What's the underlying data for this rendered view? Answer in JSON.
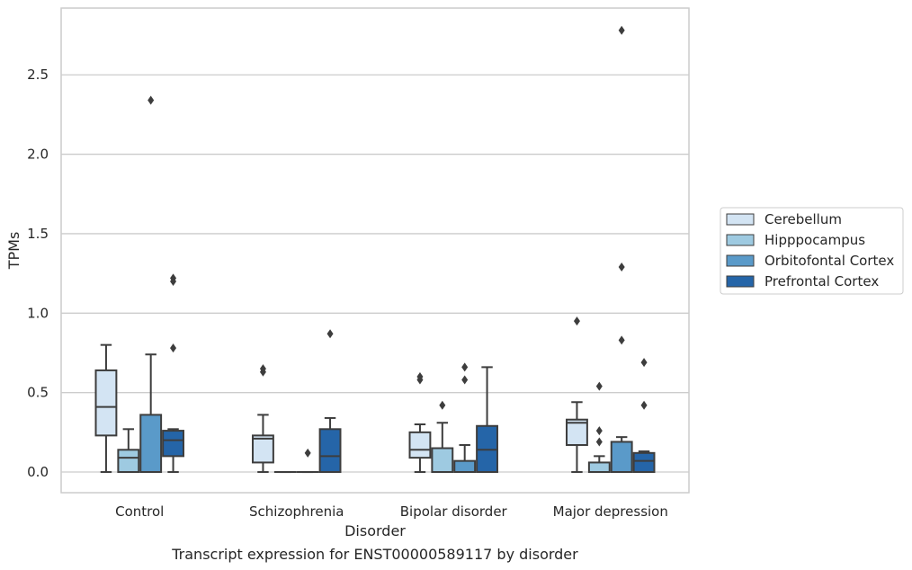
{
  "chart_data": {
    "type": "box",
    "xlabel": "Disorder",
    "ylabel": "TPMs",
    "caption": "Transcript expression for ENST00000589117 by disorder",
    "ylim": [
      -0.13,
      2.92
    ],
    "yticks": [
      "0.0",
      "0.5",
      "1.0",
      "1.5",
      "2.0",
      "2.5"
    ],
    "ytick_values": [
      0.0,
      0.5,
      1.0,
      1.5,
      2.0,
      2.5
    ],
    "grid": "horizontal",
    "legend_position": "right",
    "categories": [
      "Control",
      "Schizophrenia",
      "Bipolar disorder",
      "Major depression"
    ],
    "series": [
      {
        "name": "Cerebellum",
        "color": "#d3e4f3",
        "boxes": [
          {
            "whisker_low": 0.0,
            "q1": 0.23,
            "median": 0.41,
            "q3": 0.64,
            "whisker_high": 0.8,
            "outliers": []
          },
          {
            "whisker_low": 0.0,
            "q1": 0.06,
            "median": 0.21,
            "q3": 0.23,
            "whisker_high": 0.36,
            "outliers": [
              0.63,
              0.65
            ]
          },
          {
            "whisker_low": 0.0,
            "q1": 0.09,
            "median": 0.14,
            "q3": 0.25,
            "whisker_high": 0.3,
            "outliers": [
              0.58,
              0.6
            ]
          },
          {
            "whisker_low": 0.0,
            "q1": 0.17,
            "median": 0.31,
            "q3": 0.33,
            "whisker_high": 0.44,
            "outliers": [
              0.95
            ]
          }
        ]
      },
      {
        "name": "Hipppocampus",
        "color": "#9ecae1",
        "boxes": [
          {
            "whisker_low": 0.0,
            "q1": 0.0,
            "median": 0.09,
            "q3": 0.14,
            "whisker_high": 0.27,
            "outliers": []
          },
          {
            "whisker_low": 0.0,
            "q1": 0.0,
            "median": 0.0,
            "q3": 0.0,
            "whisker_high": 0.0,
            "outliers": []
          },
          {
            "whisker_low": 0.0,
            "q1": 0.0,
            "median": 0.0,
            "q3": 0.15,
            "whisker_high": 0.31,
            "outliers": [
              0.42
            ]
          },
          {
            "whisker_low": 0.0,
            "q1": 0.0,
            "median": 0.0,
            "q3": 0.06,
            "whisker_high": 0.1,
            "outliers": [
              0.19,
              0.26,
              0.54
            ]
          }
        ]
      },
      {
        "name": "Orbitofontal Cortex",
        "color": "#5a9ac9",
        "boxes": [
          {
            "whisker_low": 0.0,
            "q1": 0.0,
            "median": 0.0,
            "q3": 0.36,
            "whisker_high": 0.74,
            "outliers": [
              2.34
            ]
          },
          {
            "whisker_low": 0.0,
            "q1": 0.0,
            "median": 0.0,
            "q3": 0.0,
            "whisker_high": 0.0,
            "outliers": [
              0.12
            ]
          },
          {
            "whisker_low": 0.0,
            "q1": 0.0,
            "median": 0.0,
            "q3": 0.07,
            "whisker_high": 0.17,
            "outliers": [
              0.58,
              0.66
            ]
          },
          {
            "whisker_low": 0.0,
            "q1": 0.0,
            "median": 0.0,
            "q3": 0.19,
            "whisker_high": 0.22,
            "outliers": [
              0.83,
              1.29,
              2.78
            ]
          }
        ]
      },
      {
        "name": "Prefrontal Cortex",
        "color": "#2565a8",
        "boxes": [
          {
            "whisker_low": 0.0,
            "q1": 0.1,
            "median": 0.2,
            "q3": 0.26,
            "whisker_high": 0.27,
            "outliers": [
              0.78,
              1.2,
              1.22
            ]
          },
          {
            "whisker_low": 0.0,
            "q1": 0.0,
            "median": 0.1,
            "q3": 0.27,
            "whisker_high": 0.34,
            "outliers": [
              0.87
            ]
          },
          {
            "whisker_low": 0.0,
            "q1": 0.0,
            "median": 0.14,
            "q3": 0.29,
            "whisker_high": 0.66,
            "outliers": []
          },
          {
            "whisker_low": 0.0,
            "q1": 0.0,
            "median": 0.07,
            "q3": 0.12,
            "whisker_high": 0.13,
            "outliers": [
              0.42,
              0.69
            ]
          }
        ]
      }
    ]
  }
}
